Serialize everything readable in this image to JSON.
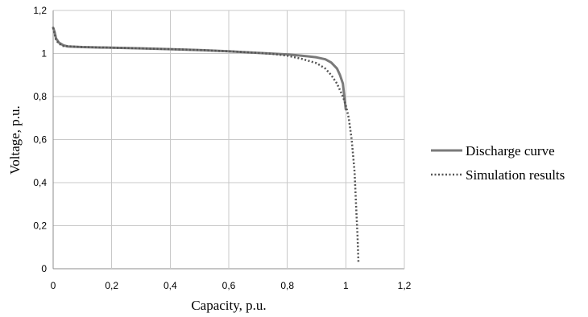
{
  "chart_data": {
    "type": "line",
    "title": "",
    "xlabel": "Capacity,  p.u.",
    "ylabel": "Voltage,  p.u.",
    "xlim": [
      0,
      1.2
    ],
    "ylim": [
      0,
      1.2
    ],
    "x_ticks": [
      "0",
      "0,2",
      "0,4",
      "0,6",
      "0,8",
      "1",
      "1,2"
    ],
    "y_ticks": [
      "0",
      "0,2",
      "0,4",
      "0,6",
      "0,8",
      "1",
      "1,2"
    ],
    "x_tick_values": [
      0,
      0.2,
      0.4,
      0.6,
      0.8,
      1.0,
      1.2
    ],
    "y_tick_values": [
      0,
      0.2,
      0.4,
      0.6,
      0.8,
      1.0,
      1.2
    ],
    "grid": true,
    "legend_position": "right",
    "series": [
      {
        "name": "Discharge curve",
        "style": "solid",
        "color": "#7a7a7a",
        "points": [
          [
            0.0,
            1.12
          ],
          [
            0.005,
            1.1
          ],
          [
            0.01,
            1.07
          ],
          [
            0.02,
            1.05
          ],
          [
            0.035,
            1.038
          ],
          [
            0.05,
            1.033
          ],
          [
            0.1,
            1.03
          ],
          [
            0.2,
            1.027
          ],
          [
            0.3,
            1.024
          ],
          [
            0.4,
            1.02
          ],
          [
            0.5,
            1.016
          ],
          [
            0.6,
            1.01
          ],
          [
            0.7,
            1.003
          ],
          [
            0.8,
            0.996
          ],
          [
            0.85,
            0.99
          ],
          [
            0.9,
            0.982
          ],
          [
            0.93,
            0.973
          ],
          [
            0.95,
            0.958
          ],
          [
            0.97,
            0.93
          ],
          [
            0.98,
            0.9
          ],
          [
            0.99,
            0.86
          ],
          [
            1.0,
            0.74
          ]
        ]
      },
      {
        "name": "Simulation results",
        "style": "dotted",
        "color": "#555555",
        "points": [
          [
            0.0,
            1.12
          ],
          [
            0.01,
            1.06
          ],
          [
            0.03,
            1.035
          ],
          [
            0.1,
            1.03
          ],
          [
            0.2,
            1.027
          ],
          [
            0.3,
            1.024
          ],
          [
            0.4,
            1.02
          ],
          [
            0.5,
            1.016
          ],
          [
            0.6,
            1.01
          ],
          [
            0.7,
            1.003
          ],
          [
            0.75,
            0.998
          ],
          [
            0.8,
            0.99
          ],
          [
            0.85,
            0.975
          ],
          [
            0.9,
            0.955
          ],
          [
            0.93,
            0.93
          ],
          [
            0.95,
            0.9
          ],
          [
            0.97,
            0.86
          ],
          [
            0.99,
            0.8
          ],
          [
            1.0,
            0.76
          ],
          [
            1.01,
            0.7
          ],
          [
            1.02,
            0.6
          ],
          [
            1.03,
            0.45
          ],
          [
            1.035,
            0.3
          ],
          [
            1.04,
            0.15
          ],
          [
            1.043,
            0.03
          ]
        ]
      }
    ]
  }
}
